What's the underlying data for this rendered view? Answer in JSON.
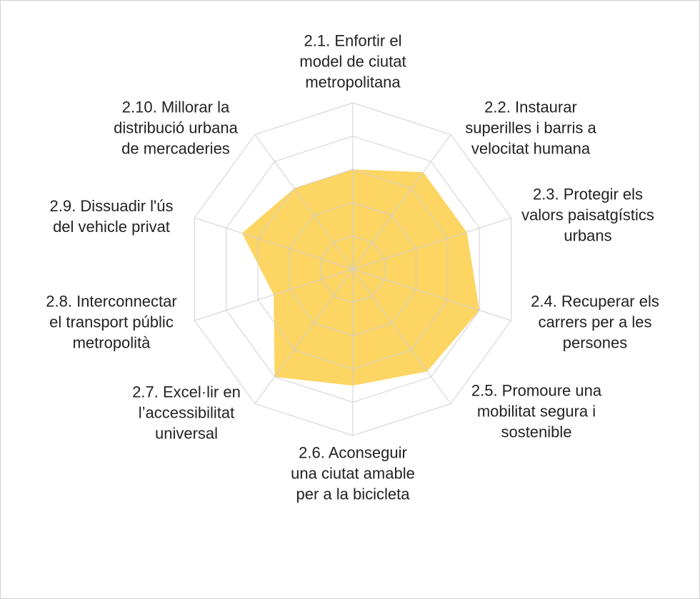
{
  "chart_data": {
    "type": "radar",
    "categories": [
      "2.1. Enfortir el\nmodel de ciutat\nmetropolitana",
      "2.2. Instaurar\nsuperilles i barris a\nvelocitat humana",
      "2.3. Protegir els\nvalors paisatgístics\nurbans",
      "2.4. Recuperar els\ncarrers per a les\npersones",
      "2.5. Promoure una\nmobilitat segura i\nsostenible",
      "2.6. Aconseguir\nuna ciutat amable\nper a la bicicleta",
      "2.7. Excel·lir en\nl’accessibilitat\nuniversal",
      "2.8. Interconnectar\nel transport públic\nmetropolità",
      "2.9. Dissuadir l'ús\ndel vehicle privat",
      "2.10. Millorar la\ndistribució urbana\nde mercaderies"
    ],
    "values": [
      3.0,
      3.6,
      3.6,
      4.0,
      3.8,
      3.5,
      4.0,
      2.5,
      3.5,
      3.0
    ],
    "color": "#fdd563",
    "ylim": [
      0,
      5
    ],
    "yticks": [
      1,
      2,
      3,
      4,
      5
    ],
    "grid": true
  }
}
